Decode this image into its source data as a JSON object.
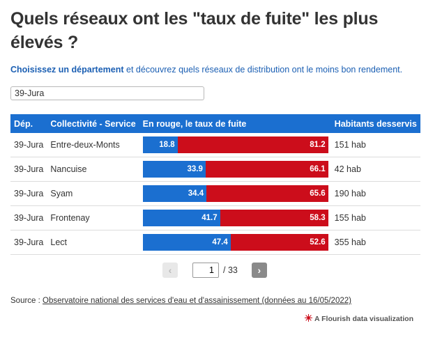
{
  "title": "Quels réseaux ont les \"taux de fuite\" les plus élevés ?",
  "subtitle": {
    "bold": "Choisissez un département",
    "rest": " et découvrez quels réseaux de distribution ont le moins bon rendement."
  },
  "search": {
    "value": "39-Jura"
  },
  "table": {
    "headers": [
      "Dép.",
      "Collectivité - Service",
      "En rouge, le taux de fuite",
      "Habitants desservis"
    ],
    "rows": [
      {
        "dep": "39-Jura",
        "collectivite": "Entre-deux-Monts",
        "rendement": "18.8",
        "fuite": "81.2",
        "habitants": "151 hab"
      },
      {
        "dep": "39-Jura",
        "collectivite": "Nancuise",
        "rendement": "33.9",
        "fuite": "66.1",
        "habitants": "42 hab"
      },
      {
        "dep": "39-Jura",
        "collectivite": "Syam",
        "rendement": "34.4",
        "fuite": "65.6",
        "habitants": "190 hab"
      },
      {
        "dep": "39-Jura",
        "collectivite": "Frontenay",
        "rendement": "41.7",
        "fuite": "58.3",
        "habitants": "155 hab"
      },
      {
        "dep": "39-Jura",
        "collectivite": "Lect",
        "rendement": "47.4",
        "fuite": "52.6",
        "habitants": "355 hab"
      }
    ]
  },
  "pagination": {
    "prev": "‹",
    "current": "1",
    "of": "/ 33",
    "next": "›"
  },
  "source": {
    "label": "Source : ",
    "link": "Observatoire national des services d'eau et d'assainissement (données au 16/05/2022)"
  },
  "credit": "A Flourish data visualization",
  "colors": {
    "blue": "#1b6fd0",
    "red": "#cc0d1b",
    "subtitle": "#1b5fb3"
  }
}
